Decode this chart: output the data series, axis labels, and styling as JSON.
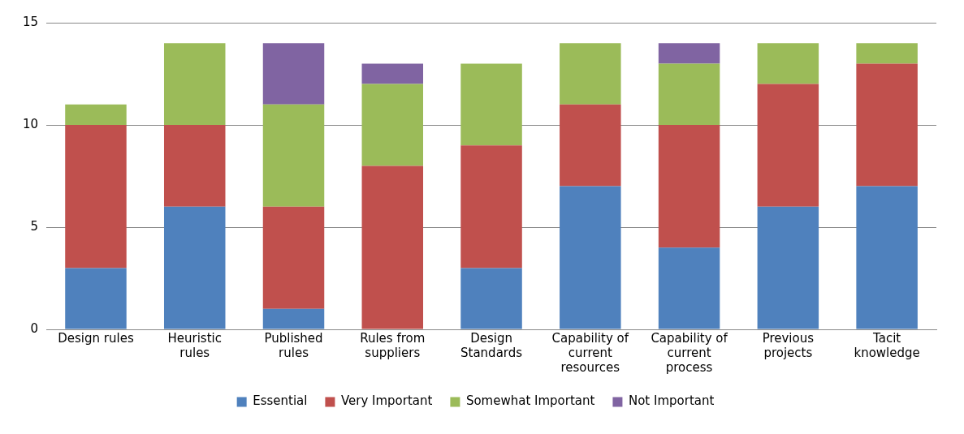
{
  "chart_data": {
    "type": "bar",
    "stacked": true,
    "categories": [
      "Design rules",
      "Heuristic rules",
      "Published rules",
      "Rules from suppliers",
      "Design Standards",
      "Capability of current resources",
      "Capability of current process",
      "Previous projects",
      "Tacit knowledge"
    ],
    "series": [
      {
        "name": "Essential",
        "color": "#4f81bd",
        "values": [
          3,
          6,
          1,
          0,
          3,
          7,
          4,
          6,
          7
        ]
      },
      {
        "name": "Very Important",
        "color": "#c0504d",
        "values": [
          7,
          4,
          5,
          8,
          6,
          4,
          6,
          6,
          6
        ]
      },
      {
        "name": "Somewhat Important",
        "color": "#9bbb59",
        "values": [
          1,
          4,
          5,
          4,
          4,
          3,
          3,
          2,
          1
        ]
      },
      {
        "name": "Not Important",
        "color": "#8064a2",
        "values": [
          0,
          0,
          3,
          1,
          0,
          0,
          1,
          0,
          0
        ]
      }
    ],
    "ylim": [
      0,
      15
    ],
    "yticks": [
      0,
      5,
      10,
      15
    ],
    "grid": "y",
    "legend": "bottom"
  }
}
